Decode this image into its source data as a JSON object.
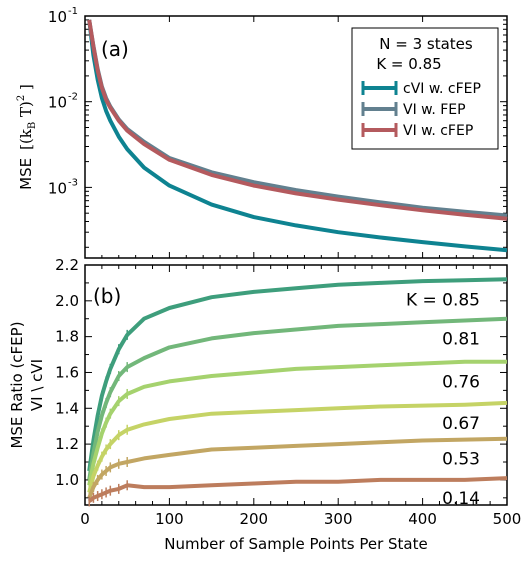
{
  "chart_data": [
    {
      "type": "line",
      "panel_label": "(a)",
      "xlim": [
        0,
        500
      ],
      "ylim": [
        0.00015,
        0.1
      ],
      "yscale": "log",
      "ylabel_prefix": "MSE",
      "ylabel_unit": "[(k",
      "ylabel_unit_sub": "B",
      "ylabel_unit_end": " T)",
      "ylabel_unit_sup": "2",
      "ylabel_unit_close": " ]",
      "yticks": [
        {
          "value": 0.1,
          "base": "10",
          "exp": "-1"
        },
        {
          "value": 0.01,
          "base": "10",
          "exp": "-2"
        },
        {
          "value": 0.001,
          "base": "10",
          "exp": "-3"
        }
      ],
      "legend": {
        "position": "top-right",
        "title_line1": "N = 3 states",
        "title_line2": "K = 0.85"
      },
      "x": [
        5,
        10,
        15,
        20,
        25,
        30,
        40,
        50,
        70,
        100,
        150,
        200,
        250,
        300,
        350,
        400,
        450,
        500
      ],
      "series": [
        {
          "name": "cVI w. cFEP",
          "color": "#0e8391",
          "values": [
            0.09,
            0.035,
            0.018,
            0.011,
            0.0078,
            0.006,
            0.0039,
            0.0028,
            0.0017,
            0.00105,
            0.00063,
            0.00045,
            0.00036,
            0.0003,
            0.00026,
            0.00023,
            0.000205,
            0.000185
          ]
        },
        {
          "name": "VI w.  FEP",
          "color": "#62808f",
          "values": [
            0.09,
            0.045,
            0.024,
            0.015,
            0.011,
            0.0088,
            0.0062,
            0.0048,
            0.0034,
            0.0022,
            0.0015,
            0.00115,
            0.00093,
            0.00078,
            0.00067,
            0.00058,
            0.00052,
            0.00047
          ]
        },
        {
          "name": "VI w. cFEP",
          "color": "#b45a5e",
          "values": [
            0.09,
            0.044,
            0.023,
            0.0145,
            0.0105,
            0.0085,
            0.006,
            0.0046,
            0.0032,
            0.0021,
            0.0014,
            0.00105,
            0.00085,
            0.00072,
            0.00062,
            0.00054,
            0.00048,
            0.00043
          ]
        }
      ]
    },
    {
      "type": "line",
      "panel_label": "(b)",
      "xlim": [
        0,
        500
      ],
      "ylim": [
        0.86,
        2.2
      ],
      "yticks": [
        1.0,
        1.2,
        1.4,
        1.6,
        1.8,
        2.0,
        2.2
      ],
      "xticks": [
        0,
        100,
        200,
        300,
        400,
        500
      ],
      "ylabel_line1": "MSE Ratio (cFEP)",
      "ylabel_line2": "VI \\ cVI",
      "xlabel": "Number of Sample Points Per State",
      "x": [
        5,
        10,
        15,
        20,
        25,
        30,
        40,
        50,
        70,
        100,
        150,
        200,
        250,
        300,
        350,
        400,
        450,
        500
      ],
      "series": [
        {
          "label": "K = 0.85",
          "color": "#3e9e7c",
          "values": [
            1.05,
            1.22,
            1.36,
            1.47,
            1.55,
            1.62,
            1.73,
            1.81,
            1.9,
            1.96,
            2.02,
            2.05,
            2.07,
            2.09,
            2.1,
            2.11,
            2.115,
            2.12
          ]
        },
        {
          "label": "0.81",
          "color": "#72b77a",
          "values": [
            1.0,
            1.15,
            1.27,
            1.36,
            1.43,
            1.49,
            1.58,
            1.63,
            1.68,
            1.74,
            1.79,
            1.82,
            1.84,
            1.86,
            1.87,
            1.88,
            1.89,
            1.9
          ]
        },
        {
          "label": "0.76",
          "color": "#a5d26e",
          "values": [
            0.97,
            1.09,
            1.18,
            1.26,
            1.32,
            1.37,
            1.44,
            1.48,
            1.52,
            1.55,
            1.58,
            1.6,
            1.62,
            1.63,
            1.64,
            1.65,
            1.66,
            1.66
          ]
        },
        {
          "label": "0.67",
          "color": "#c5d366",
          "values": [
            0.93,
            1.02,
            1.08,
            1.13,
            1.17,
            1.2,
            1.25,
            1.28,
            1.31,
            1.34,
            1.37,
            1.38,
            1.39,
            1.4,
            1.41,
            1.415,
            1.42,
            1.43
          ]
        },
        {
          "label": "0.53",
          "color": "#c2a663",
          "values": [
            0.9,
            0.96,
            1.0,
            1.03,
            1.05,
            1.07,
            1.09,
            1.1,
            1.12,
            1.14,
            1.17,
            1.18,
            1.19,
            1.2,
            1.21,
            1.22,
            1.225,
            1.23
          ]
        },
        {
          "label": "0.14",
          "color": "#bd7d5d",
          "values": [
            0.88,
            0.9,
            0.91,
            0.92,
            0.93,
            0.94,
            0.95,
            0.97,
            0.96,
            0.96,
            0.97,
            0.98,
            0.99,
            0.99,
            1.0,
            1.0,
            1.0,
            1.01
          ]
        }
      ]
    }
  ]
}
